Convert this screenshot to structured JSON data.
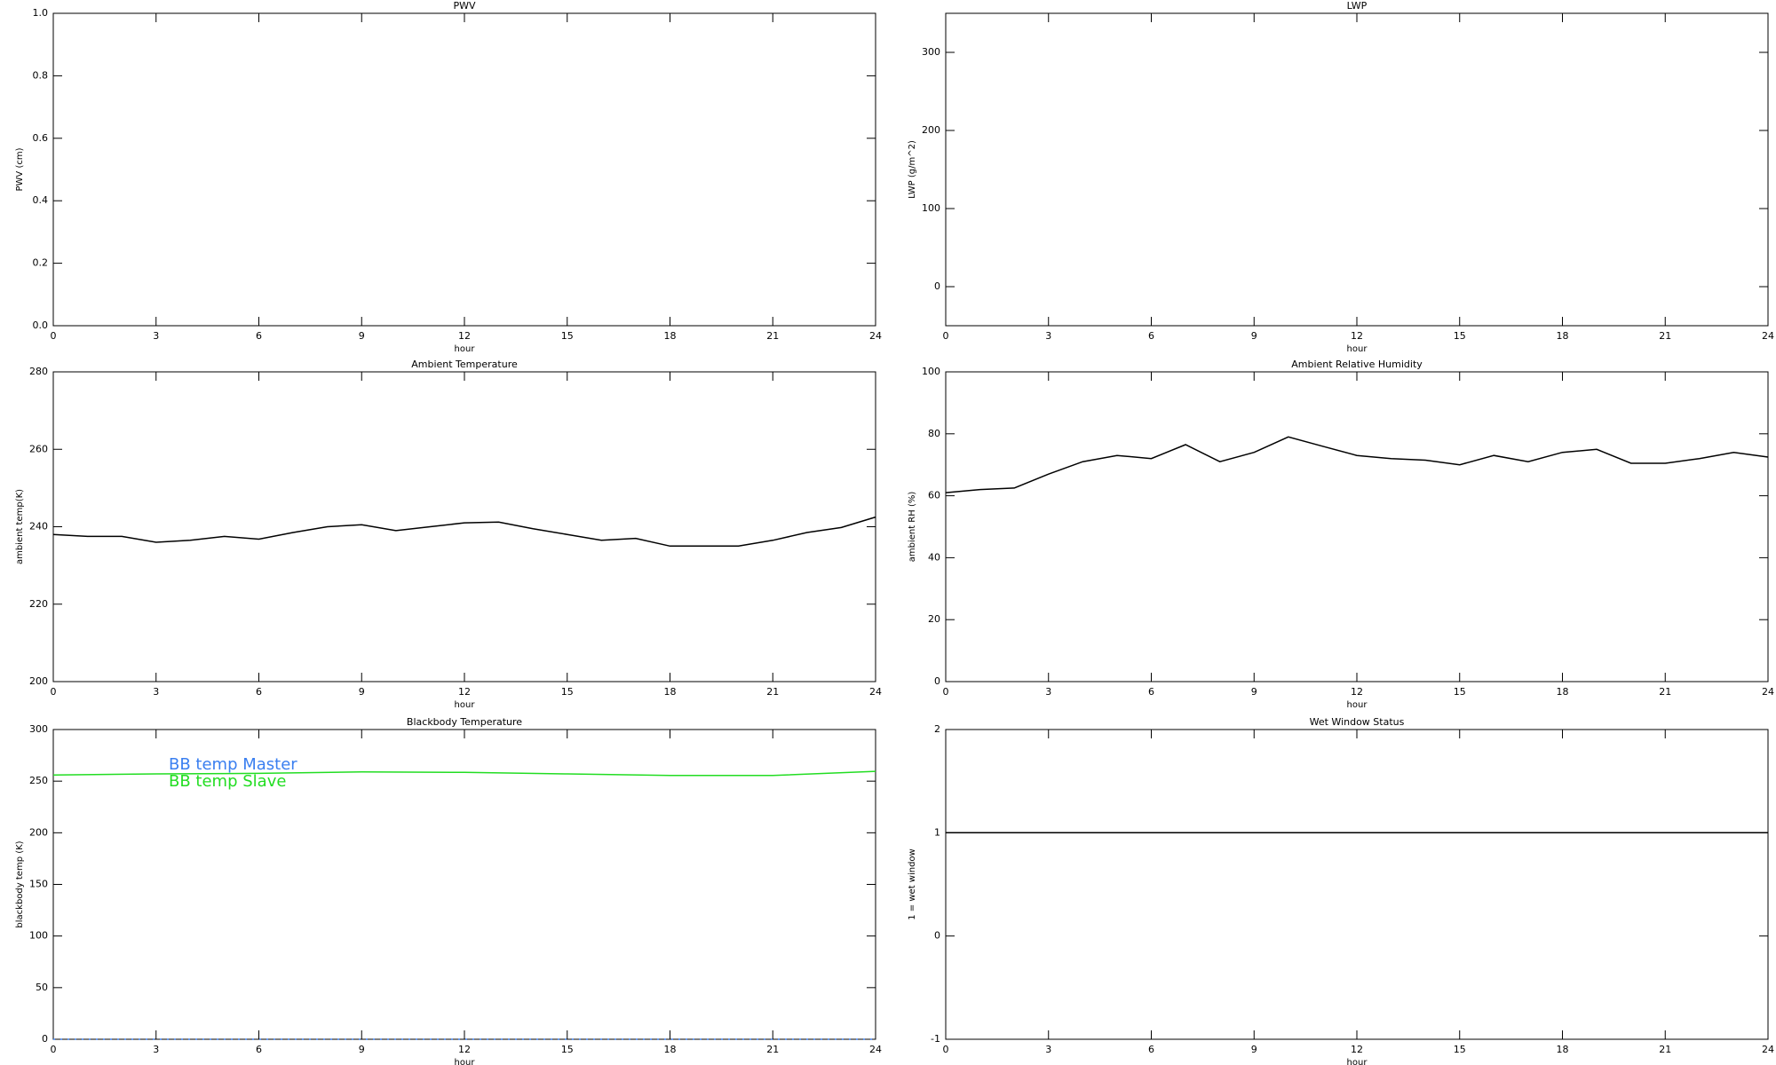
{
  "chart_data": [
    {
      "type": "line",
      "title": "PWV",
      "ylabel": "PWV (cm)",
      "xlabel": "hour",
      "xlim": [
        0,
        24
      ],
      "xticks": [
        0,
        3,
        6,
        9,
        12,
        15,
        18,
        21,
        24
      ],
      "ylim": [
        0,
        1
      ],
      "yticks": [
        {
          "value": 0,
          "label": "0.0"
        },
        0.2,
        0.4,
        0.6,
        0.8,
        {
          "value": 1,
          "label": "1.0"
        }
      ],
      "x": [],
      "series": []
    },
    {
      "type": "line",
      "title": "LWP",
      "ylabel": "LWP (g/m^2)",
      "xlabel": "hour",
      "xlim": [
        0,
        24
      ],
      "xticks": [
        0,
        3,
        6,
        9,
        12,
        15,
        18,
        21,
        24
      ],
      "ylim": [
        -50,
        350
      ],
      "yticks": [
        0,
        100,
        200,
        300
      ],
      "x": [],
      "series": []
    },
    {
      "type": "line",
      "title": "Ambient Temperature",
      "ylabel": "ambient temp(K)",
      "xlabel": "hour",
      "xlim": [
        0,
        24
      ],
      "xticks": [
        0,
        3,
        6,
        9,
        12,
        15,
        18,
        21,
        24
      ],
      "ylim": [
        200,
        280
      ],
      "yticks": [
        200,
        220,
        240,
        260,
        280
      ],
      "x": [
        0,
        1,
        2,
        3,
        4,
        5,
        6,
        7,
        8,
        9,
        10,
        11,
        12,
        13,
        14,
        15,
        16,
        17,
        18,
        19,
        20,
        21,
        22,
        23,
        24
      ],
      "series": [
        {
          "color": "#000000",
          "style": "solid",
          "values": [
            238,
            237.5,
            237.5,
            236,
            236.5,
            237.5,
            236.8,
            238.5,
            240,
            240.5,
            239,
            240,
            241,
            241.2,
            239.5,
            238,
            236.5,
            237,
            235,
            235,
            235,
            236.5,
            238.5,
            239.8,
            242.5
          ]
        }
      ]
    },
    {
      "type": "line",
      "title": "Ambient Relative Humidity",
      "ylabel": "ambient RH (%)",
      "xlabel": "hour",
      "xlim": [
        0,
        24
      ],
      "xticks": [
        0,
        3,
        6,
        9,
        12,
        15,
        18,
        21,
        24
      ],
      "ylim": [
        0,
        100
      ],
      "yticks": [
        0,
        20,
        40,
        60,
        80,
        100
      ],
      "x": [
        0,
        1,
        2,
        3,
        4,
        5,
        6,
        7,
        8,
        9,
        10,
        11,
        12,
        13,
        14,
        15,
        16,
        17,
        18,
        19,
        20,
        21,
        22,
        23,
        24
      ],
      "series": [
        {
          "color": "#000000",
          "style": "solid",
          "values": [
            61,
            62,
            62.5,
            67,
            71,
            73,
            72,
            76.5,
            71,
            74,
            79,
            76,
            73,
            72,
            71.5,
            70,
            73,
            71,
            74,
            75,
            70.5,
            70.5,
            72,
            74,
            72.5
          ]
        }
      ]
    },
    {
      "type": "line",
      "title": "Blackbody Temperature",
      "ylabel": "blackbody temp (K)",
      "xlabel": "hour",
      "xlim": [
        0,
        24
      ],
      "xticks": [
        0,
        3,
        6,
        9,
        12,
        15,
        18,
        21,
        24
      ],
      "ylim": [
        0,
        300
      ],
      "yticks": [
        0,
        50,
        100,
        150,
        200,
        250,
        300
      ],
      "legend": "upper left",
      "x": [
        0,
        3,
        6,
        9,
        12,
        15,
        18,
        21,
        24
      ],
      "series": [
        {
          "name": "BB temp Master",
          "color": "#3a7ff0",
          "style": "dotted",
          "values": [
            0,
            0,
            0,
            0,
            0,
            0,
            0,
            0,
            0
          ]
        },
        {
          "name": "BB temp Slave",
          "color": "#22dd22",
          "style": "solid",
          "values": [
            256,
            257,
            257.5,
            259,
            258.5,
            257,
            255.5,
            255.5,
            259.5
          ]
        }
      ]
    },
    {
      "type": "line",
      "title": "Wet Window Status",
      "ylabel": "1 = wet window",
      "xlabel": "hour",
      "xlim": [
        0,
        24
      ],
      "xticks": [
        0,
        3,
        6,
        9,
        12,
        15,
        18,
        21,
        24
      ],
      "ylim": [
        -1,
        2
      ],
      "yticks": [
        -1,
        0,
        1,
        2
      ],
      "x": [
        0,
        24
      ],
      "series": [
        {
          "color": "#000000",
          "style": "solid",
          "values": [
            1,
            1
          ]
        }
      ]
    }
  ]
}
